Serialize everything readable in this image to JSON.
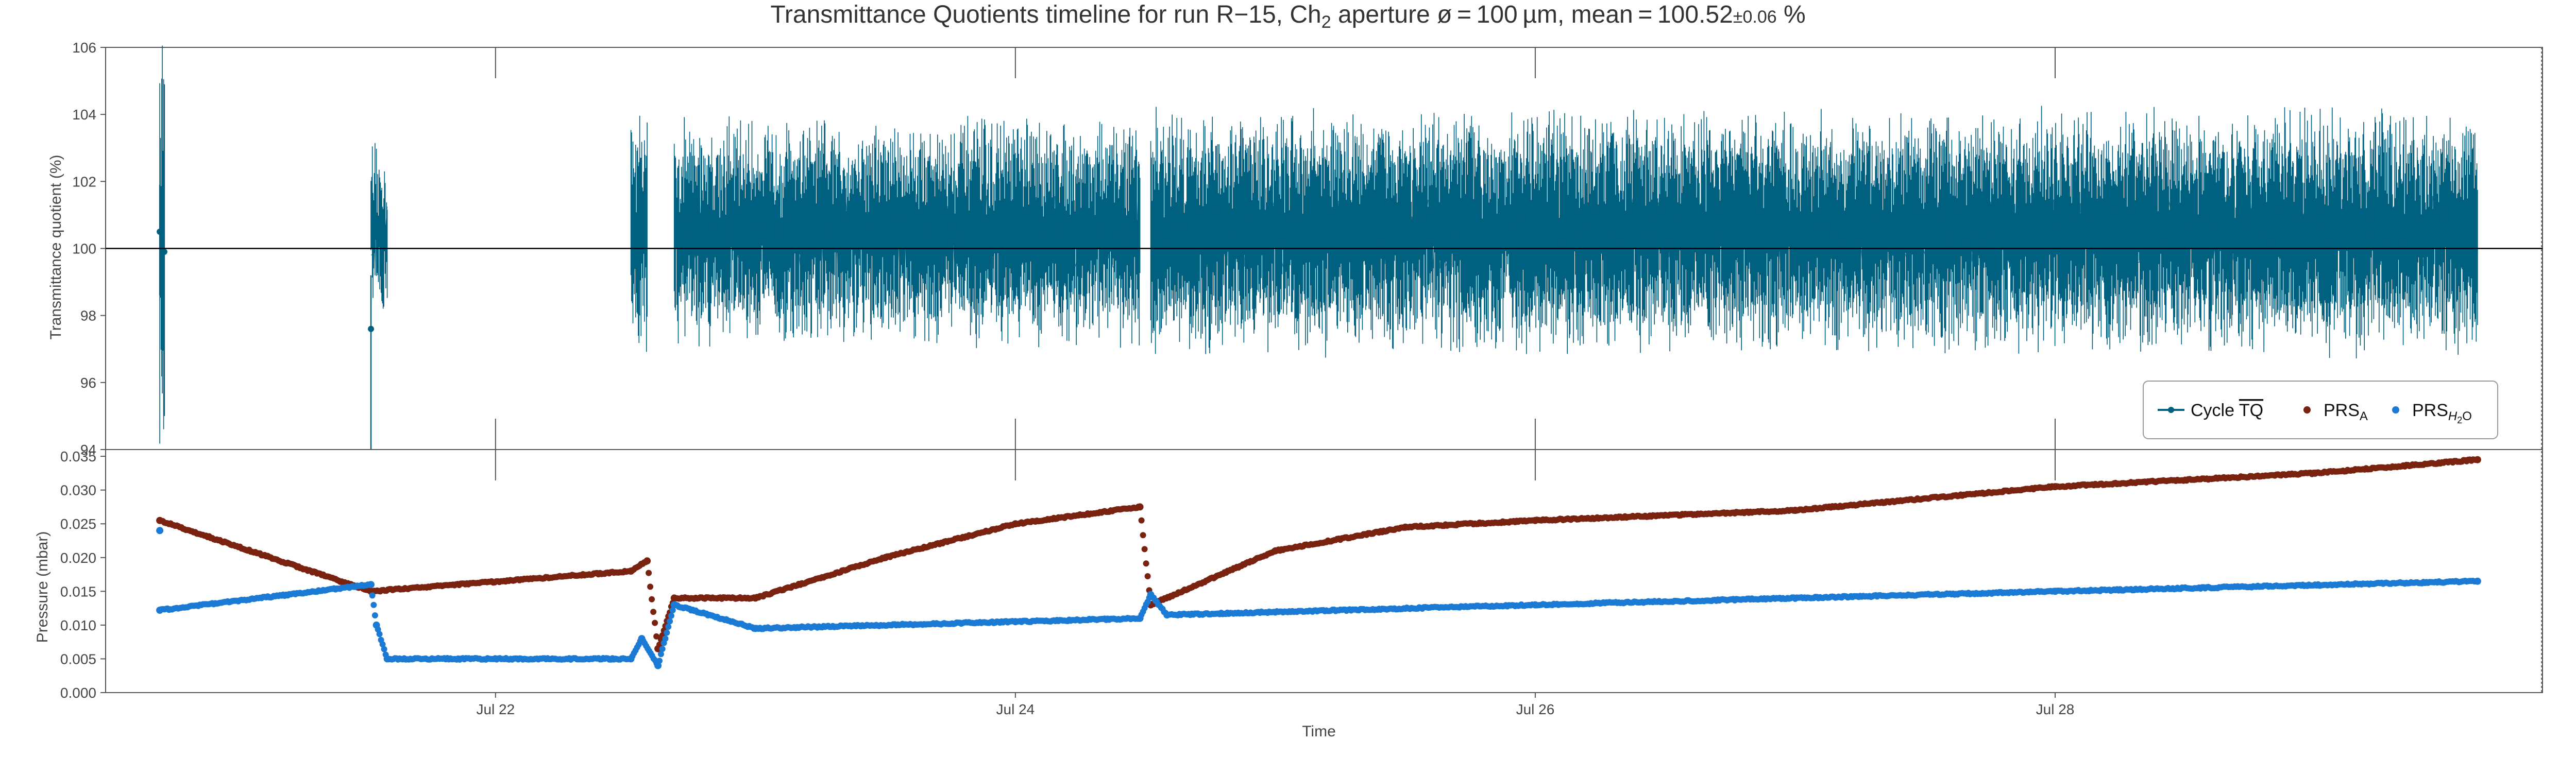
{
  "chart_data": [
    {
      "type": "line",
      "title": "Transmittance Quotients timeline for run R−15, Ch",
      "title_sub": "2",
      "title_rest": " aperture ø = 100 µm, mean = 100.52",
      "title_err": "±0.06",
      "title_unit": " %",
      "ylabel": "Transmittance quotient (%)",
      "ylim": [
        94,
        106
      ],
      "yticks": [
        "94",
        "96",
        "98",
        "100",
        "102",
        "104",
        "106"
      ],
      "reference_line": 100,
      "series_color": "#006080",
      "series": [
        {
          "name": "Cycle TQ",
          "segments": [
            {
              "start": "2023-07-20T17:00",
              "end": "2023-07-20T17:25",
              "mean": 100.2,
              "band": 5.0
            },
            {
              "start": "2023-07-21T12:30",
              "end": "2023-07-21T14:00",
              "mean": 100.4,
              "band": 1.7
            },
            {
              "start": "2023-07-22T12:30",
              "end": "2023-07-22T14:00",
              "mean": 100.6,
              "band": 2.6
            },
            {
              "start": "2023-07-22T16:30",
              "end": "2023-07-24T11:30",
              "mean": 100.5,
              "band": 2.3
            },
            {
              "start": "2023-07-24T12:30",
              "end": "2023-07-29T15:00",
              "mean": 100.5,
              "band": 2.5
            }
          ],
          "points": [
            {
              "x": "2023-07-20T17:00",
              "y": 100.5,
              "lo": 98.6,
              "hi": 101.9
            },
            {
              "x": "2023-07-20T17:25",
              "y": 99.9,
              "lo": 95.0,
              "hi": 104.9
            },
            {
              "x": "2023-07-21T12:30",
              "y": 97.6,
              "lo": 94.0,
              "hi": 99.2
            }
          ]
        }
      ],
      "legend": {
        "position": "lower right",
        "entries": [
          {
            "label": "Cycle ",
            "label_over": "TQ",
            "color": "#006080",
            "marker": "errorbar"
          },
          {
            "label": "PRS",
            "label_sub": "A",
            "color": "#7a2210",
            "marker": "dot"
          },
          {
            "label": "PRS",
            "label_sub": "H",
            "label_sub2": "2",
            "label_sub3": "O",
            "color": "#1a7ad4",
            "marker": "dot"
          }
        ]
      }
    },
    {
      "type": "scatter",
      "ylabel": "Pressure (mbar)",
      "xlabel": "Time",
      "ylim": [
        0.0,
        0.036
      ],
      "yticks": [
        "0.000",
        "0.005",
        "0.010",
        "0.015",
        "0.020",
        "0.025",
        "0.030",
        "0.035"
      ],
      "xlim": [
        "2023-07-20T12:00",
        "2023-07-29T21:00"
      ],
      "xticks": [
        "Jul 22",
        "Jul 24",
        "Jul 26",
        "Jul 28"
      ],
      "xtick_dates": [
        "2023-07-22",
        "2023-07-24",
        "2023-07-26",
        "2023-07-28"
      ],
      "series": [
        {
          "name": "PRSA",
          "color": "#7a2210",
          "points": [
            [
              "2023-07-20T17:00",
              0.0255
            ],
            [
              "2023-07-21T12:30",
              0.015
            ],
            [
              "2023-07-22T12:30",
              0.018
            ],
            [
              "2023-07-22T14:00",
              0.0195
            ],
            [
              "2023-07-22T15:00",
              0.0065
            ],
            [
              "2023-07-22T16:30",
              0.014
            ],
            [
              "2023-07-23T00:00",
              0.014
            ],
            [
              "2023-07-23T12:00",
              0.02
            ],
            [
              "2023-07-24T00:00",
              0.025
            ],
            [
              "2023-07-24T11:30",
              0.0275
            ],
            [
              "2023-07-24T12:30",
              0.013
            ],
            [
              "2023-07-25T00:00",
              0.021
            ],
            [
              "2023-07-25T12:00",
              0.0245
            ],
            [
              "2023-07-26T00:00",
              0.0255
            ],
            [
              "2023-07-27T00:00",
              0.027
            ],
            [
              "2023-07-28T00:00",
              0.0305
            ],
            [
              "2023-07-29T00:00",
              0.0325
            ],
            [
              "2023-07-29T15:00",
              0.0345
            ]
          ]
        },
        {
          "name": "PRSH2O",
          "color": "#1a7ad4",
          "points": [
            [
              "2023-07-20T17:00",
              0.024
            ],
            [
              "2023-07-20T17:00",
              0.0122
            ],
            [
              "2023-07-21T12:30",
              0.016
            ],
            [
              "2023-07-21T13:00",
              0.01
            ],
            [
              "2023-07-21T14:00",
              0.005
            ],
            [
              "2023-07-22T12:30",
              0.005
            ],
            [
              "2023-07-22T13:30",
              0.008
            ],
            [
              "2023-07-22T15:00",
              0.004
            ],
            [
              "2023-07-22T16:30",
              0.013
            ],
            [
              "2023-07-23T00:00",
              0.0095
            ],
            [
              "2023-07-24T00:00",
              0.0105
            ],
            [
              "2023-07-24T11:30",
              0.011
            ],
            [
              "2023-07-24T12:30",
              0.0145
            ],
            [
              "2023-07-24T14:00",
              0.0115
            ],
            [
              "2023-07-26T00:00",
              0.013
            ],
            [
              "2023-07-28T00:00",
              0.015
            ],
            [
              "2023-07-29T15:00",
              0.0165
            ]
          ]
        }
      ]
    }
  ]
}
